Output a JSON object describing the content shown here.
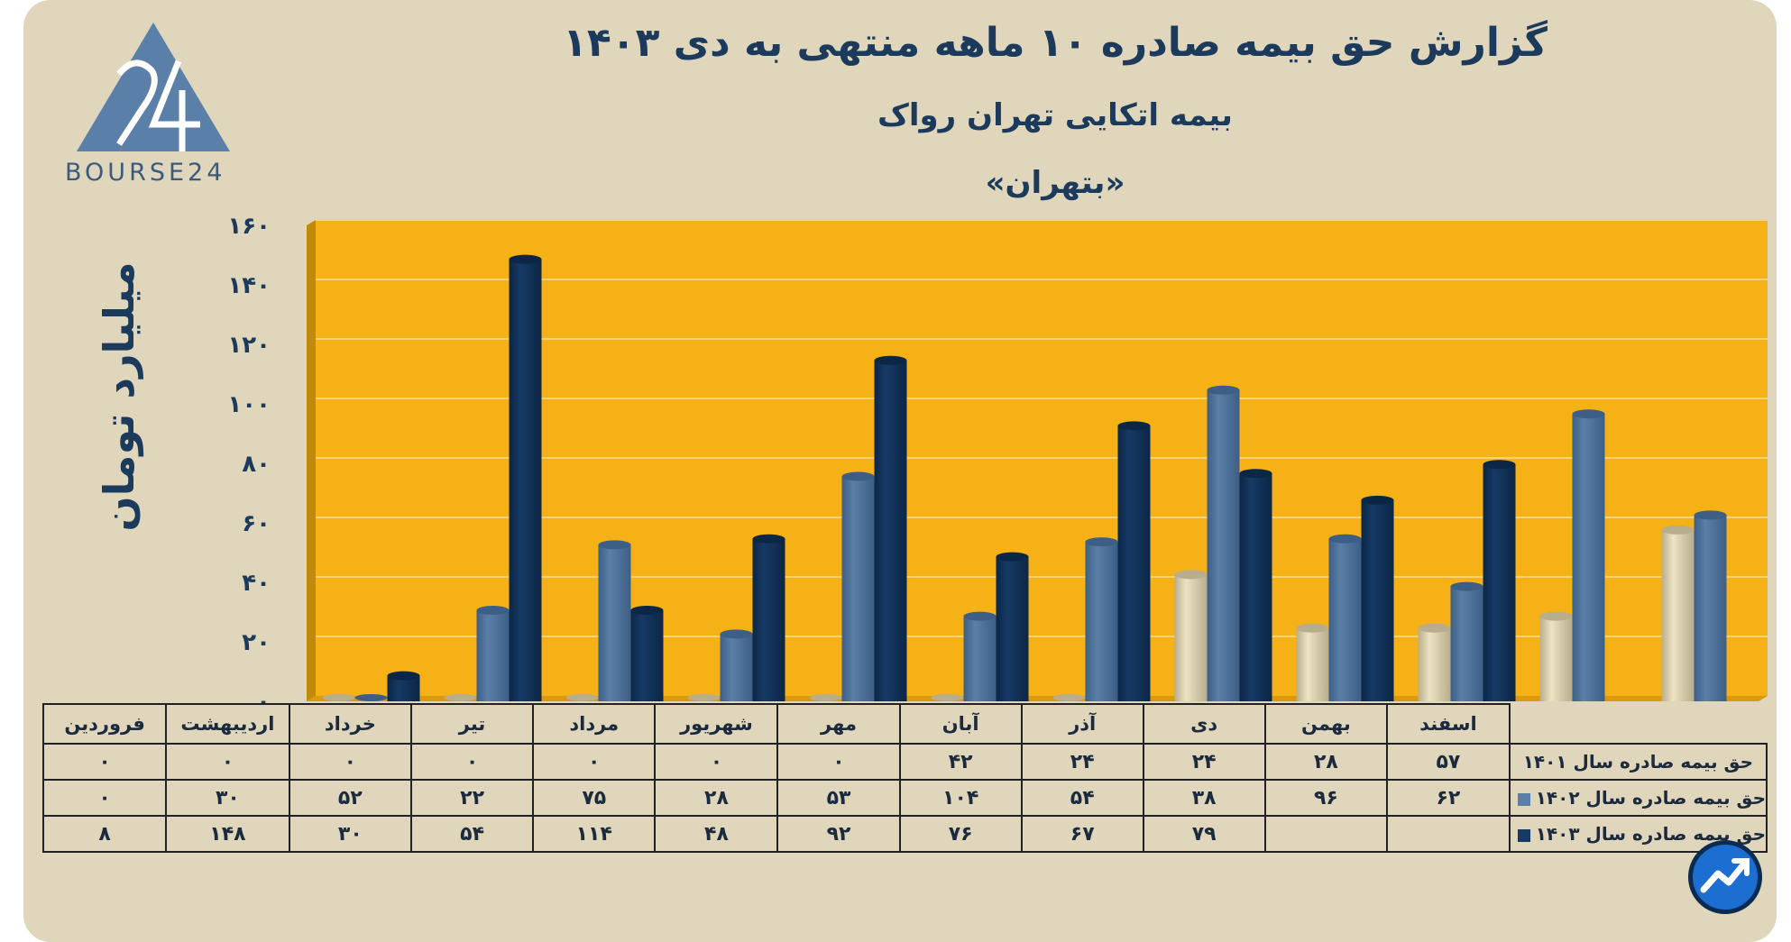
{
  "header": {
    "title": "گزارش  حق بیمه صادره ۱۰ ماهه منتهی به دی ۱۴۰۳",
    "subtitle": "بیمه اتکایی تهران رواک",
    "ticker": "«بتهران»"
  },
  "logo": {
    "text": "BOURSE24"
  },
  "colors": {
    "y1401": "#ece3c4",
    "y1402": "#5b7fa8",
    "y1403": "#163a65",
    "plot_bg": "#f6b117"
  },
  "chart_data": {
    "type": "bar",
    "title": "گزارش  حق بیمه صادره ۱۰ ماهه منتهی به دی ۱۴۰۳",
    "ylabel": "میلیارد تومان",
    "ylim": [
      0,
      160
    ],
    "yticks": [
      0,
      20,
      40,
      60,
      80,
      100,
      120,
      140,
      160
    ],
    "ytick_labels": [
      "۰",
      "۲۰",
      "۴۰",
      "۶۰",
      "۸۰",
      "۱۰۰",
      "۱۲۰",
      "۱۴۰",
      "۱۶۰"
    ],
    "categories": [
      "فروردین",
      "اردیبهشت",
      "خرداد",
      "تیر",
      "مرداد",
      "شهریور",
      "مهر",
      "آبان",
      "آذر",
      "دی",
      "بهمن",
      "اسفند"
    ],
    "series": [
      {
        "name": "حق بیمه صادره سال ۱۴۰۱",
        "values": [
          0,
          0,
          0,
          0,
          0,
          0,
          0,
          42,
          24,
          24,
          28,
          57
        ],
        "labels": [
          "۰",
          "۰",
          "۰",
          "۰",
          "۰",
          "۰",
          "۰",
          "۴۲",
          "۲۴",
          "۲۴",
          "۲۸",
          "۵۷"
        ]
      },
      {
        "name": "حق بیمه صادره سال ۱۴۰۲",
        "values": [
          0,
          30,
          52,
          22,
          75,
          28,
          53,
          104,
          54,
          38,
          96,
          62
        ],
        "labels": [
          "۰",
          "۳۰",
          "۵۲",
          "۲۲",
          "۷۵",
          "۲۸",
          "۵۳",
          "۱۰۴",
          "۵۴",
          "۳۸",
          "۹۶",
          "۶۲"
        ]
      },
      {
        "name": "حق بیمه صادره سال ۱۴۰۳",
        "values": [
          8,
          148,
          30,
          54,
          114,
          48,
          92,
          76,
          67,
          79,
          null,
          null
        ],
        "labels": [
          "۸",
          "۱۴۸",
          "۳۰",
          "۵۴",
          "۱۱۴",
          "۴۸",
          "۹۲",
          "۷۶",
          "۶۷",
          "۷۹",
          "",
          ""
        ]
      }
    ],
    "legend": "table-below",
    "grid": true
  }
}
